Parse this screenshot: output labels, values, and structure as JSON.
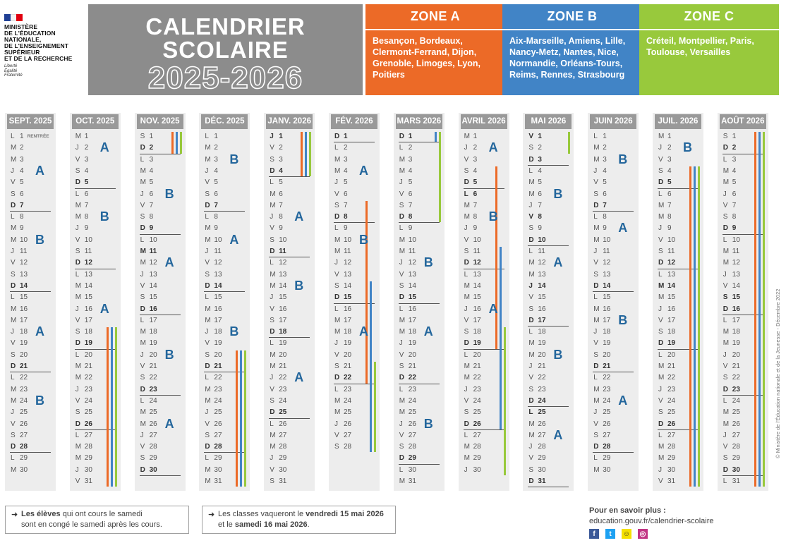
{
  "header": {
    "ministry_lines": [
      "MINISTÈRE",
      "DE L'ÉDUCATION",
      "NATIONALE,",
      "DE L'ENSEIGNEMENT",
      "SUPÉRIEUR",
      "ET DE LA RECHERCHE"
    ],
    "motto": [
      "Liberté",
      "Égalité",
      "Fraternité"
    ],
    "title_line1": "CALENDRIER",
    "title_line2": "SCOLAIRE",
    "year": "2025-2026"
  },
  "colors": {
    "zone_a": "#ec6a27",
    "zone_b": "#4184c6",
    "zone_c": "#98c93c",
    "letter": "#23669c",
    "title_bg": "#8c8c8c"
  },
  "zones": [
    {
      "label": "ZONE A",
      "color": "#ec6a27",
      "cities": "Besançon, Bordeaux, Clermont-Ferrand, Dijon, Grenoble, Limoges, Lyon, Poitiers"
    },
    {
      "label": "ZONE B",
      "color": "#4184c6",
      "cities": "Aix-Marseille, Amiens, Lille, Nancy-Metz, Nantes, Nice, Normandie, Orléans-Tours, Reims, Rennes, Strasbourg"
    },
    {
      "label": "ZONE C",
      "color": "#98c93c",
      "cities": "Créteil, Montpellier, Paris, Toulouse, Versailles"
    }
  ],
  "months": [
    {
      "name": "SEPT. 2025",
      "days": 30,
      "start": 0,
      "rentree_label": "RENTRÉE",
      "letters": [
        [
          "A",
          4
        ],
        [
          "B",
          10
        ],
        [
          "A",
          18
        ],
        [
          "B",
          24
        ]
      ],
      "bars": []
    },
    {
      "name": "OCT. 2025",
      "days": 31,
      "start": 2,
      "letters": [
        [
          "A",
          2
        ],
        [
          "B",
          8
        ],
        [
          "A",
          16
        ]
      ],
      "bars": [
        [
          "a",
          18,
          31
        ],
        [
          "b",
          18,
          31
        ],
        [
          "c",
          18,
          31
        ]
      ]
    },
    {
      "name": "NOV. 2025",
      "days": 30,
      "start": 5,
      "letters": [
        [
          "B",
          6
        ],
        [
          "A",
          12
        ],
        [
          "B",
          20
        ],
        [
          "A",
          26
        ]
      ],
      "bars": [
        [
          "a",
          1,
          2
        ],
        [
          "b",
          1,
          2
        ],
        [
          "c",
          1,
          2
        ]
      ]
    },
    {
      "name": "DÉC. 2025",
      "days": 31,
      "start": 0,
      "letters": [
        [
          "B",
          3
        ],
        [
          "A",
          10
        ],
        [
          "B",
          18
        ]
      ],
      "bars": [
        [
          "a",
          20,
          31
        ],
        [
          "b",
          20,
          31
        ],
        [
          "c",
          20,
          31
        ]
      ]
    },
    {
      "name": "JANV. 2026",
      "days": 31,
      "start": 3,
      "letters": [
        [
          "A",
          8
        ],
        [
          "B",
          14
        ],
        [
          "A",
          22
        ]
      ],
      "bars": [
        [
          "a",
          1,
          4
        ],
        [
          "b",
          1,
          4
        ],
        [
          "c",
          1,
          4
        ]
      ]
    },
    {
      "name": "FÉV. 2026",
      "days": 28,
      "start": 6,
      "letters": [
        [
          "A",
          4
        ],
        [
          "B",
          10
        ],
        [
          "A",
          18
        ]
      ],
      "bars": [
        [
          "a",
          7,
          22
        ],
        [
          "b",
          14,
          28
        ],
        [
          "c",
          21,
          28
        ]
      ]
    },
    {
      "name": "MARS 2026",
      "days": 31,
      "start": 6,
      "letters": [
        [
          "B",
          12
        ],
        [
          "A",
          18
        ],
        [
          "B",
          26
        ]
      ],
      "bars": [
        [
          "b",
          1,
          1
        ],
        [
          "c",
          1,
          8
        ]
      ]
    },
    {
      "name": "AVRIL 2026",
      "days": 30,
      "start": 2,
      "letters": [
        [
          "A",
          2
        ],
        [
          "B",
          8
        ],
        [
          "A",
          16
        ]
      ],
      "bars": [
        [
          "a",
          4,
          19
        ],
        [
          "b",
          11,
          26
        ],
        [
          "c",
          18,
          30
        ]
      ]
    },
    {
      "name": "MAI 2026",
      "days": 31,
      "start": 4,
      "letters": [
        [
          "B",
          6
        ],
        [
          "A",
          12
        ],
        [
          "B",
          20
        ],
        [
          "A",
          27
        ]
      ],
      "bars": [
        [
          "c",
          1,
          2
        ]
      ]
    },
    {
      "name": "JUIN 2026",
      "days": 30,
      "start": 0,
      "letters": [
        [
          "B",
          3
        ],
        [
          "A",
          9
        ],
        [
          "B",
          17
        ],
        [
          "A",
          24
        ]
      ],
      "bars": []
    },
    {
      "name": "JUIL. 2026",
      "days": 31,
      "start": 2,
      "letters": [
        [
          "B",
          2
        ]
      ],
      "bars": [
        [
          "a",
          4,
          31
        ],
        [
          "b",
          4,
          31
        ],
        [
          "c",
          4,
          31
        ]
      ]
    },
    {
      "name": "AOÛT 2026",
      "days": 31,
      "start": 5,
      "letters": [],
      "bars": [
        [
          "a",
          1,
          31
        ],
        [
          "b",
          1,
          31
        ],
        [
          "c",
          1,
          31
        ]
      ]
    }
  ],
  "weekday_letters": [
    "L",
    "M",
    "M",
    "J",
    "V",
    "S",
    "D"
  ],
  "holidays": {
    "NOV. 2025": [
      11
    ],
    "JANV. 2026": [
      1
    ],
    "AVRIL 2026": [
      6
    ],
    "MAI 2026": [
      1,
      8,
      14,
      25
    ],
    "JUIL. 2026": [
      14
    ],
    "AOÛT 2026": [
      15
    ]
  },
  "footer": {
    "box1_bold": "Les élèves",
    "box1_text": " qui ont cours le samedi",
    "box1_line2": "sont en congé le samedi après les cours.",
    "box2_text": "Les classes vaqueront le ",
    "box2_bold1": "vendredi 15 mai 2026",
    "box2_line2_pre": "et le ",
    "box2_bold2": "samedi 16 mai 2026",
    "box2_line2_post": ".",
    "info_title": "Pour en savoir plus :",
    "info_url": "education.gouv.fr/calendrier-scolaire",
    "socials": [
      "facebook-icon",
      "twitter-icon",
      "snapchat-icon",
      "instagram-icon"
    ]
  },
  "copyright": "© Ministère de l'Éducation nationale et de la Jeunesse - Décembre 2022"
}
